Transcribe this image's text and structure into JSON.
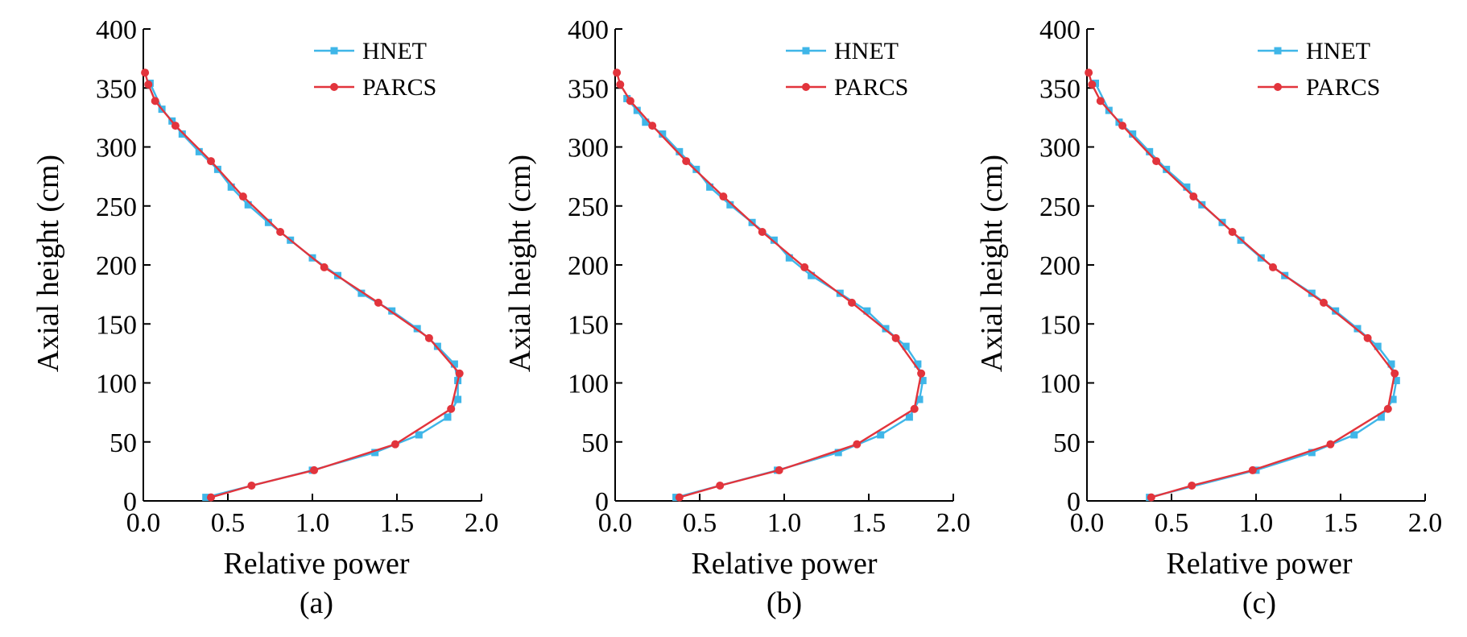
{
  "colors": {
    "HNET": "#3fb6e8",
    "PARCS": "#e2343c",
    "axis": "#000000"
  },
  "chart_data": [
    {
      "type": "line",
      "caption": "(a)",
      "xlabel": "Relative power",
      "ylabel": "Axial height (cm)",
      "xlim": [
        0,
        2.0
      ],
      "ylim": [
        0,
        400
      ],
      "xticks": [
        "0.0",
        "0.5",
        "1.0",
        "1.5",
        "2.0"
      ],
      "yticks": [
        "0",
        "50",
        "100",
        "150",
        "200",
        "250",
        "300",
        "350",
        "400"
      ],
      "grid": false,
      "legend_position": "top-right",
      "series": [
        {
          "name": "HNET",
          "marker": "square",
          "x": [
            0.37,
            1.0,
            1.37,
            1.63,
            1.8,
            1.86,
            1.86,
            1.84,
            1.74,
            1.62,
            1.47,
            1.29,
            1.15,
            1.0,
            0.87,
            0.74,
            0.62,
            0.52,
            0.44,
            0.33,
            0.23,
            0.17,
            0.11,
            0.04
          ],
          "y": [
            3,
            26,
            41,
            56,
            71,
            86,
            102,
            116,
            131,
            146,
            161,
            176,
            191,
            206,
            221,
            236,
            251,
            266,
            281,
            296,
            311,
            322,
            332,
            354
          ]
        },
        {
          "name": "PARCS",
          "marker": "circle",
          "x": [
            0.4,
            0.64,
            1.01,
            1.49,
            1.82,
            1.87,
            1.69,
            1.39,
            1.07,
            0.81,
            0.59,
            0.4,
            0.19,
            0.07,
            0.01,
            0.03
          ],
          "y": [
            3,
            13,
            26,
            48,
            78,
            108,
            138,
            168,
            198,
            228,
            258,
            288,
            318,
            339,
            363,
            353
          ]
        }
      ]
    },
    {
      "type": "line",
      "caption": "(b)",
      "xlabel": "Relative power",
      "ylabel": "Axial height (cm)",
      "xlim": [
        0,
        2.0
      ],
      "ylim": [
        0,
        400
      ],
      "xticks": [
        "0.0",
        "0.5",
        "1.0",
        "1.5",
        "2.0"
      ],
      "yticks": [
        "0",
        "50",
        "100",
        "150",
        "200",
        "250",
        "300",
        "350",
        "400"
      ],
      "grid": false,
      "legend_position": "top-right",
      "series": [
        {
          "name": "HNET",
          "marker": "square",
          "x": [
            0.36,
            0.96,
            1.32,
            1.57,
            1.74,
            1.8,
            1.82,
            1.79,
            1.72,
            1.6,
            1.49,
            1.33,
            1.16,
            1.03,
            0.94,
            0.81,
            0.68,
            0.56,
            0.48,
            0.38,
            0.28,
            0.18,
            0.13,
            0.07
          ],
          "y": [
            3,
            26,
            41,
            56,
            71,
            86,
            102,
            116,
            131,
            146,
            161,
            176,
            191,
            206,
            221,
            236,
            251,
            266,
            281,
            296,
            311,
            321,
            331,
            341
          ]
        },
        {
          "name": "PARCS",
          "marker": "circle",
          "x": [
            0.38,
            0.62,
            0.97,
            1.43,
            1.77,
            1.81,
            1.66,
            1.4,
            1.12,
            0.87,
            0.64,
            0.42,
            0.22,
            0.09,
            0.01,
            0.03
          ],
          "y": [
            3,
            13,
            26,
            48,
            78,
            108,
            138,
            168,
            198,
            228,
            258,
            288,
            318,
            339,
            363,
            353
          ]
        }
      ]
    },
    {
      "type": "line",
      "caption": "(c)",
      "xlabel": "Relative power",
      "ylabel": "Axial height (cm)",
      "xlim": [
        0,
        2.0
      ],
      "ylim": [
        0,
        400
      ],
      "xticks": [
        "0.0",
        "0.5",
        "1.0",
        "1.5",
        "2.0"
      ],
      "yticks": [
        "0",
        "50",
        "100",
        "150",
        "200",
        "250",
        "300",
        "350",
        "400"
      ],
      "grid": false,
      "legend_position": "top-right",
      "series": [
        {
          "name": "HNET",
          "marker": "square",
          "x": [
            0.37,
            1.0,
            1.33,
            1.58,
            1.74,
            1.81,
            1.83,
            1.8,
            1.72,
            1.6,
            1.47,
            1.33,
            1.17,
            1.03,
            0.91,
            0.8,
            0.68,
            0.59,
            0.47,
            0.37,
            0.27,
            0.19,
            0.13,
            0.05
          ],
          "y": [
            3,
            26,
            41,
            56,
            71,
            86,
            102,
            116,
            131,
            146,
            161,
            176,
            191,
            206,
            221,
            236,
            251,
            266,
            281,
            296,
            311,
            321,
            331,
            354
          ]
        },
        {
          "name": "PARCS",
          "marker": "circle",
          "x": [
            0.38,
            0.62,
            0.98,
            1.44,
            1.78,
            1.82,
            1.66,
            1.4,
            1.1,
            0.86,
            0.63,
            0.41,
            0.21,
            0.08,
            0.01,
            0.03
          ],
          "y": [
            3,
            13,
            26,
            48,
            78,
            108,
            138,
            168,
            198,
            228,
            258,
            288,
            318,
            339,
            363,
            353
          ]
        }
      ]
    }
  ]
}
